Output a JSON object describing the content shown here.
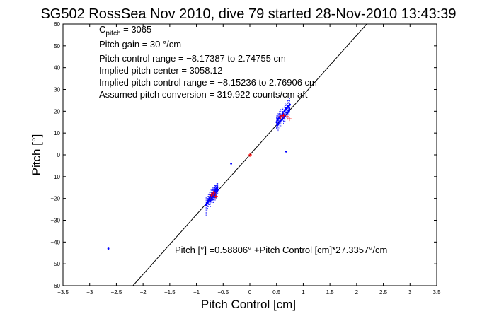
{
  "chart_data": {
    "type": "scatter",
    "title": "SG502 RossSea Nov 2010, dive 79 started 28-Nov-2010 13:43:39",
    "xlabel": "Pitch Control [cm]",
    "ylabel": "Pitch [°]",
    "xlim": [
      -3.5,
      3.5
    ],
    "ylim": [
      -60,
      60
    ],
    "xticks": [
      -3.5,
      -3,
      -2.5,
      -2,
      -1.5,
      -1,
      -0.5,
      0,
      0.5,
      1,
      1.5,
      2,
      2.5,
      3,
      3.5
    ],
    "xtick_labels": [
      "−3.5",
      "−3",
      "−2.5",
      "−2",
      "−1.5",
      "−1",
      "−0.5",
      "0",
      "0.5",
      "1",
      "1.5",
      "2",
      "2.5",
      "3",
      "3.5"
    ],
    "yticks": [
      -60,
      -50,
      -40,
      -30,
      -20,
      -10,
      0,
      10,
      20,
      30,
      40,
      50,
      60
    ],
    "ytick_labels": [
      "−60",
      "−50",
      "−40",
      "−30",
      "−20",
      "−10",
      "0",
      "10",
      "20",
      "30",
      "40",
      "50",
      "60"
    ],
    "grid": false,
    "annotations": {
      "c_pitch_prefix": "C",
      "c_pitch_sub": "pitch",
      "c_pitch_value": " = 3065",
      "pitch_gain": "Pitch gain = 30 °/cm",
      "control_range": "Pitch control range = −8.17387 to 2.74755 cm",
      "implied_center": "Implied pitch center = 3058.12",
      "implied_range": "Implied pitch control range = −8.15236 to 2.76906 cm",
      "assumed_conversion": "Assumed pitch conversion = 319.922 counts/cm aft",
      "fit_equation": "Pitch [°] =0.58806° +Pitch Control [cm]*27.3357°/cm"
    },
    "series": [
      {
        "kind": "fit_line",
        "color": "#000000",
        "slope": 27.3357,
        "intercept_x": 0.58806,
        "x": [
          -2.19,
          2.19
        ],
        "y": [
          -60,
          60
        ]
      },
      {
        "kind": "observations",
        "color": "#0000ff",
        "x": [
          -0.82,
          -0.8,
          -0.78,
          -0.76,
          -0.75,
          -0.73,
          -0.72,
          -0.7,
          -0.69,
          -0.68,
          -0.67,
          -0.66,
          -0.65,
          -0.64,
          -0.63,
          -0.62,
          -0.61,
          -0.6,
          -0.71,
          -0.74,
          -0.77,
          -0.79,
          -0.68,
          -0.65,
          -0.62,
          -0.7,
          0.5,
          0.52,
          0.53,
          0.55,
          0.56,
          0.58,
          0.6,
          0.62,
          0.63,
          0.65,
          0.66,
          0.68,
          0.7,
          0.72,
          0.73,
          0.75,
          0.54,
          0.57,
          0.61,
          0.64,
          0.67,
          0.69,
          0.71,
          0.74,
          -2.65,
          0.68,
          -0.35
        ],
        "y": [
          -23,
          -22,
          -21,
          -20,
          -19.5,
          -19,
          -18.5,
          -18,
          -19,
          -17.5,
          -18,
          -17,
          -16.5,
          -16,
          -17,
          -15.5,
          -15,
          -16,
          -20,
          -21,
          -20.5,
          -22,
          -19,
          -18,
          -16,
          -17.5,
          15,
          16,
          14,
          17,
          15,
          18,
          16,
          19,
          17,
          20,
          18,
          21,
          19,
          22,
          20,
          23,
          16.5,
          15.5,
          18.5,
          17.5,
          21.5,
          19.5,
          22.5,
          21,
          -43,
          1.5,
          -4
        ],
        "err_low": [
          -28,
          -26,
          -24,
          -23,
          -22,
          -22,
          -21,
          -21,
          -22,
          -20,
          -21,
          -20,
          -19,
          -18,
          -20,
          -18,
          -17,
          -18,
          -23,
          -24,
          -23,
          -25,
          -22,
          -21,
          -18,
          -20,
          12,
          13,
          11,
          14,
          12,
          15,
          13,
          16,
          14,
          17,
          15,
          18,
          16,
          19,
          17,
          20,
          14,
          13,
          16,
          15,
          19,
          17,
          20,
          18,
          -43,
          1.5,
          -4
        ],
        "err_high": [
          -19,
          -19,
          -18,
          -17,
          -17,
          -16,
          -16,
          -15,
          -16,
          -15,
          -15,
          -14,
          -14,
          -14,
          -14,
          -13,
          -13,
          -13,
          -17,
          -18,
          -18,
          -19,
          -16,
          -15,
          -14,
          -15,
          18,
          19,
          17,
          20,
          18,
          21,
          19,
          22,
          20,
          23,
          21,
          24,
          22,
          25,
          23,
          26,
          19,
          18,
          21,
          20,
          24,
          22,
          25,
          24,
          -43,
          1.5,
          -4
        ]
      },
      {
        "kind": "targets",
        "color": "#ff0000",
        "marker": "+",
        "x": [
          -0.72,
          -0.68,
          -0.64,
          0.0,
          0.58,
          0.63,
          0.7,
          0.74
        ],
        "y": [
          -18.5,
          -17.5,
          -19,
          0,
          17.5,
          18,
          17.5,
          16.5
        ]
      }
    ]
  }
}
